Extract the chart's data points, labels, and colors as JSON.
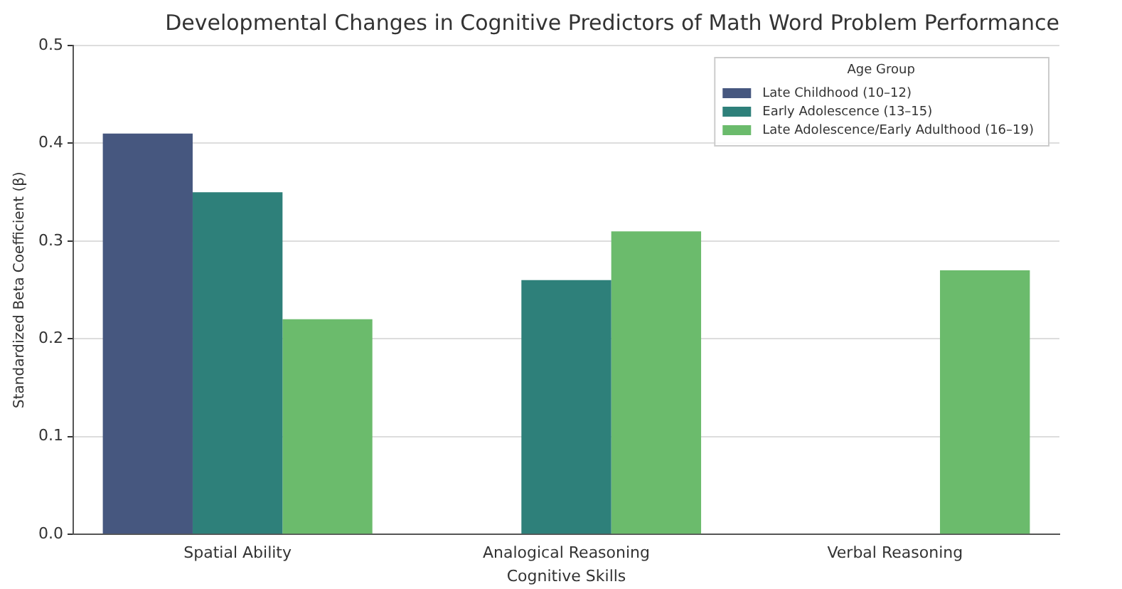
{
  "chart_data": {
    "type": "bar",
    "title": "Developmental Changes in Cognitive Predictors of Math Word Problem Performance",
    "xlabel": "Cognitive Skills",
    "ylabel": "Standardized Beta Coefficient (β)",
    "legend_title": "Age Group",
    "categories": [
      "Spatial Ability",
      "Analogical Reasoning",
      "Verbal Reasoning"
    ],
    "series": [
      {
        "name": "Late Childhood (10–12)",
        "color": "#46577f",
        "values": [
          0.41,
          null,
          null
        ]
      },
      {
        "name": "Early Adolescence (13–15)",
        "color": "#2e807a",
        "values": [
          0.35,
          0.26,
          null
        ]
      },
      {
        "name": "Late Adolescence/Early Adulthood (16–19)",
        "color": "#6bbb6c",
        "values": [
          0.22,
          0.31,
          0.27
        ]
      }
    ],
    "ylim": [
      0,
      0.5
    ],
    "yticks": [
      {
        "value": 0,
        "label": "0.0"
      },
      0.1,
      0.2,
      0.3,
      0.4,
      0.5
    ],
    "grid": "y",
    "legend": "top right"
  }
}
